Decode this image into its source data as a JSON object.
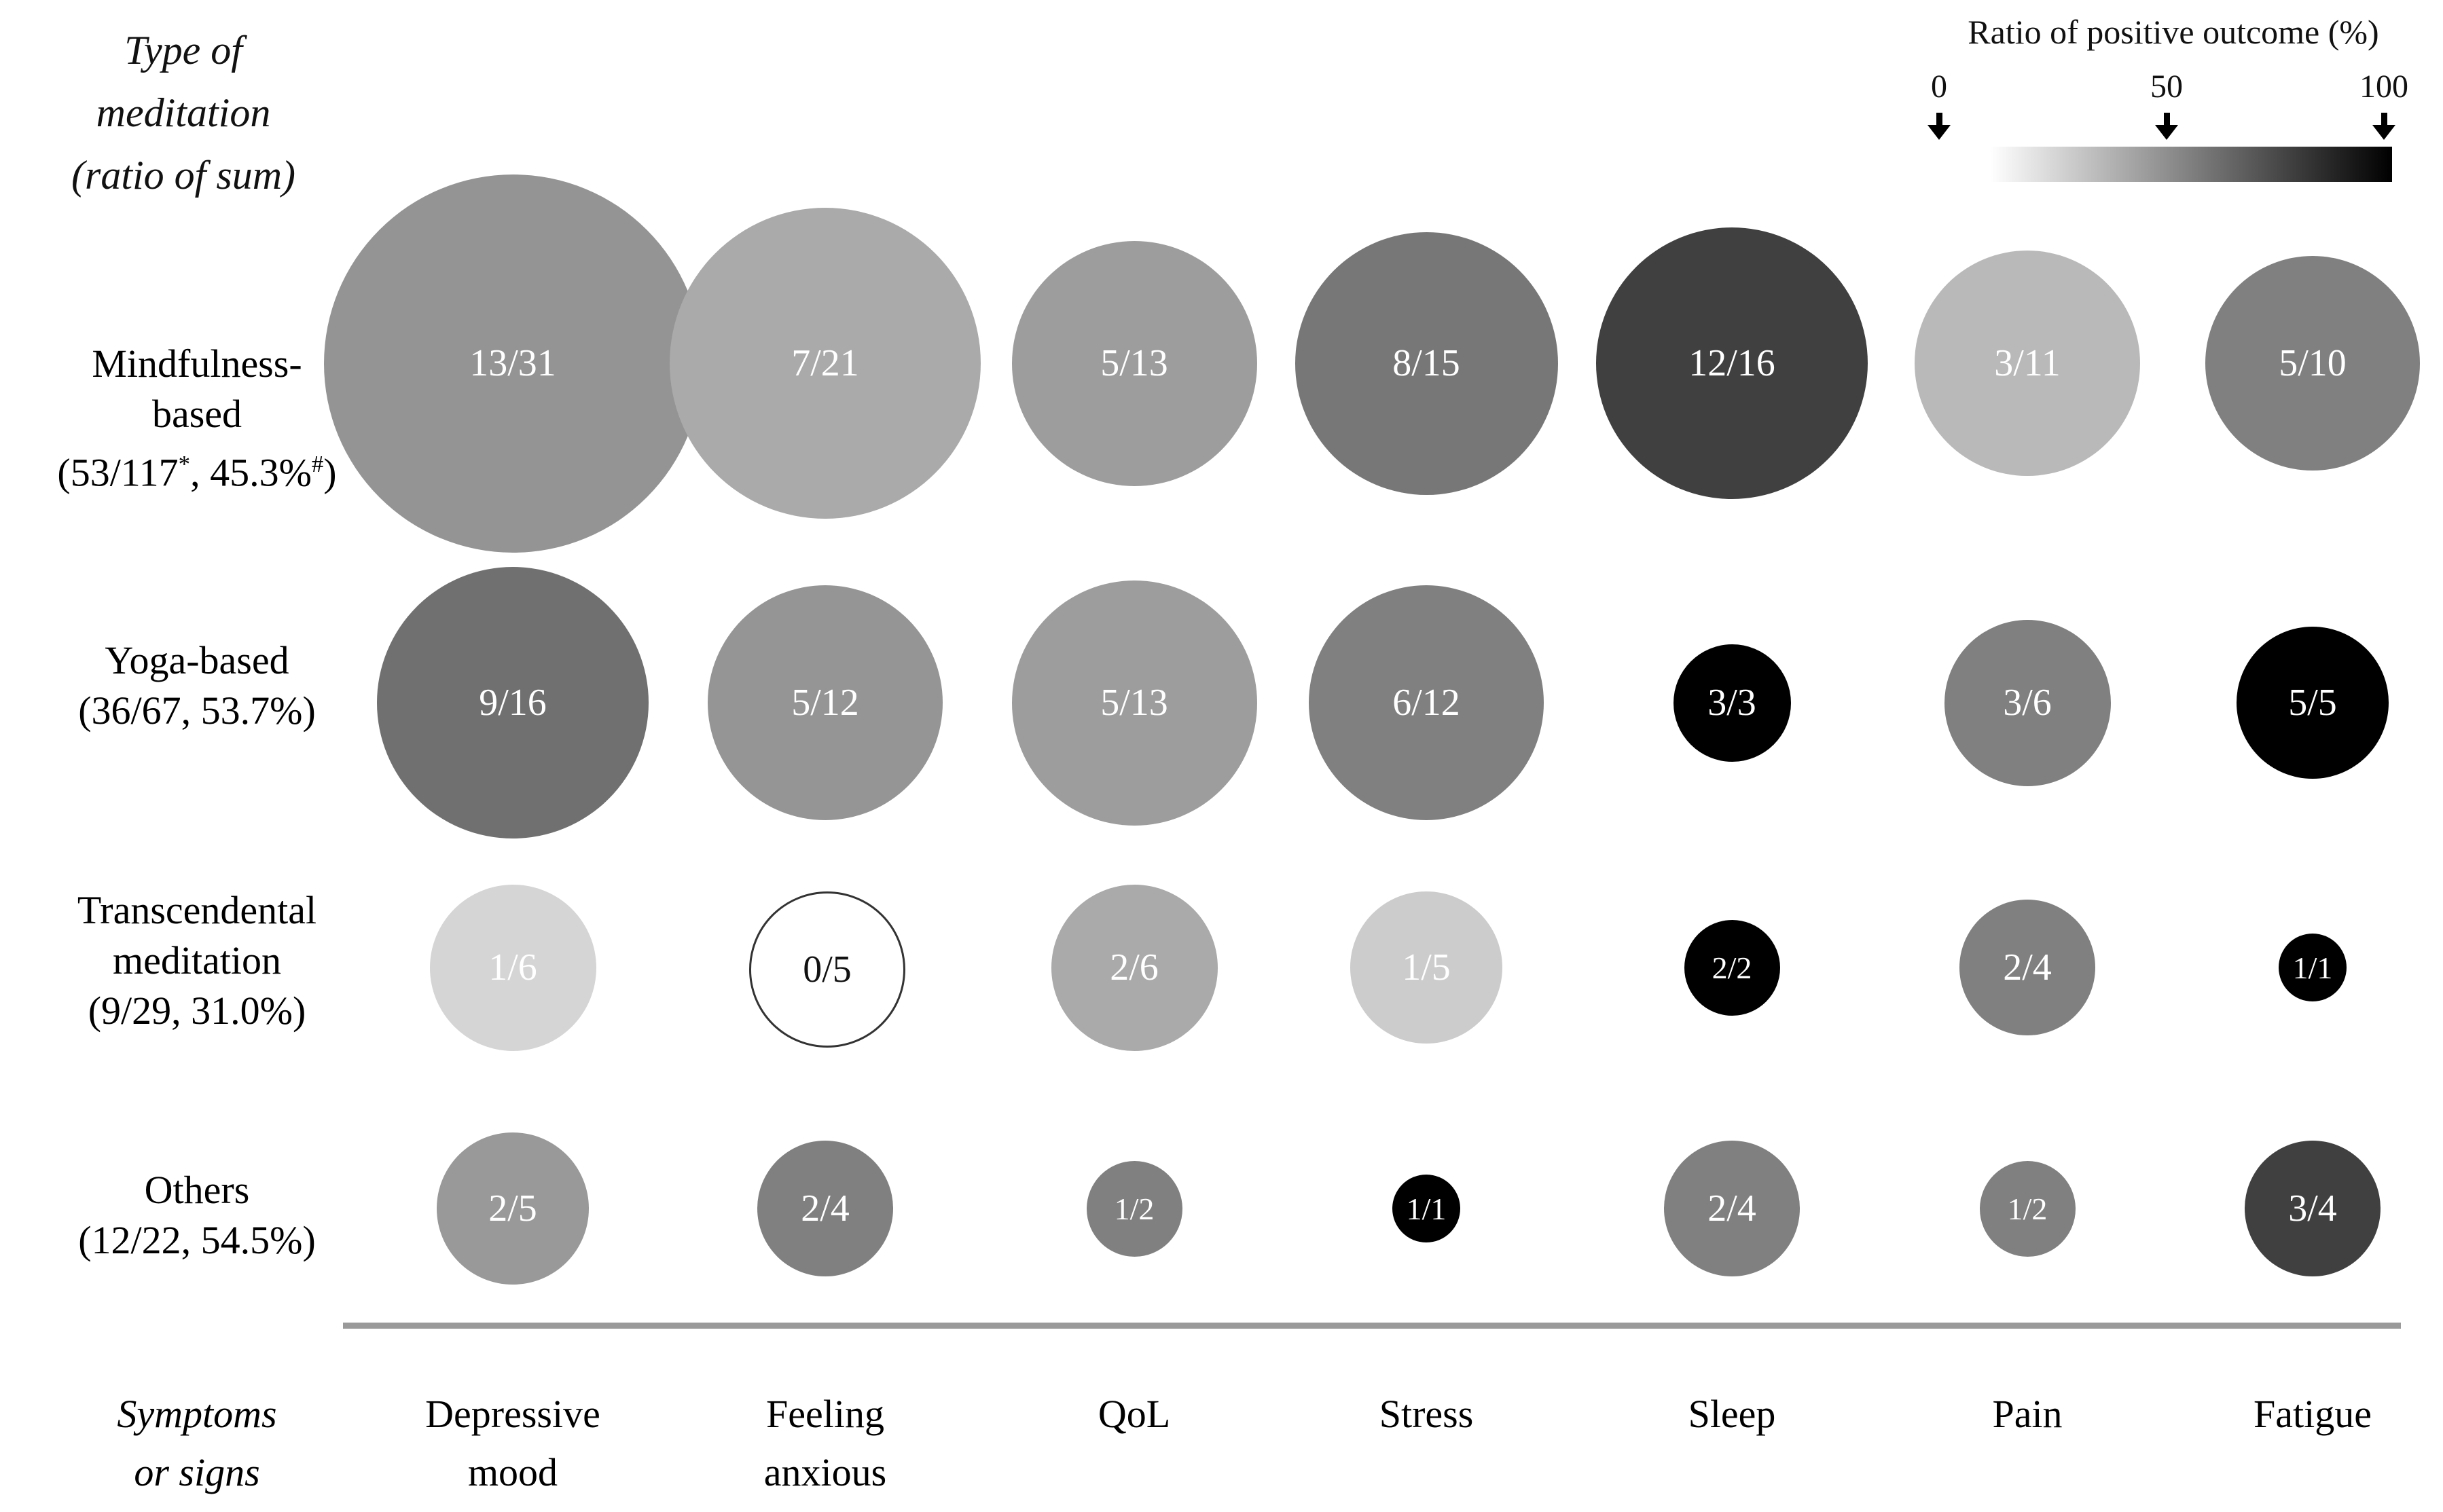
{
  "header": {
    "line1": "Type of",
    "line2": "meditation",
    "line3": "(ratio of sum)"
  },
  "legend": {
    "title": "Ratio of positive outcome (%)",
    "tick_labels": [
      "0",
      "50",
      "100"
    ],
    "gradient_start_color": "#ffffff",
    "gradient_end_color": "#000000"
  },
  "footer": {
    "axis_title_line1": "Symptoms",
    "axis_title_line2": "or signs"
  },
  "chart_data": {
    "type": "scatter",
    "subtype": "bubble-matrix",
    "title": "",
    "legend_title": "Ratio of positive outcome (%)",
    "legend_range": [
      0,
      50,
      100
    ],
    "row_axis_title": "Type of meditation (ratio of sum)",
    "col_axis_title": "Symptoms or signs",
    "size_encoding": "circle area proportional to total number of outcomes (denominator)",
    "color_encoding": "fill darkness proportional to ratio of positive outcome: 0% = white, 100% = black",
    "columns": [
      {
        "label_lines": [
          "Depressive",
          "mood"
        ]
      },
      {
        "label_lines": [
          "Feeling",
          "anxious"
        ]
      },
      {
        "label_lines": [
          "QoL"
        ]
      },
      {
        "label_lines": [
          "Stress"
        ]
      },
      {
        "label_lines": [
          "Sleep"
        ]
      },
      {
        "label_lines": [
          "Pain"
        ]
      },
      {
        "label_lines": [
          "Fatigue"
        ]
      }
    ],
    "rows": [
      {
        "label_lines": [
          "Mindfulness-",
          "based"
        ],
        "sum_text": "(53/117*, 45.3%#)",
        "sum_segments": [
          {
            "t": "(53/117"
          },
          {
            "t": "*",
            "sup": true
          },
          {
            "t": ", 45.3%"
          },
          {
            "t": "#",
            "sup": true
          },
          {
            "t": ")"
          }
        ],
        "cells": [
          {
            "label": "13/31",
            "positive": 13,
            "total": 31
          },
          {
            "label": "7/21",
            "positive": 7,
            "total": 21
          },
          {
            "label": "5/13",
            "positive": 5,
            "total": 13
          },
          {
            "label": "8/15",
            "positive": 8,
            "total": 15
          },
          {
            "label": "12/16",
            "positive": 12,
            "total": 16
          },
          {
            "label": "3/11",
            "positive": 3,
            "total": 11
          },
          {
            "label": "5/10",
            "positive": 5,
            "total": 10
          }
        ]
      },
      {
        "label_lines": [
          "Yoga-based"
        ],
        "sum_text": "(36/67, 53.7%)",
        "sum_segments": [
          {
            "t": "(36/67, 53.7%)"
          }
        ],
        "cells": [
          {
            "label": "9/16",
            "positive": 9,
            "total": 16
          },
          {
            "label": "5/12",
            "positive": 5,
            "total": 12
          },
          {
            "label": "5/13",
            "positive": 5,
            "total": 13
          },
          {
            "label": "6/12",
            "positive": 6,
            "total": 12
          },
          {
            "label": "3/3",
            "positive": 3,
            "total": 3
          },
          {
            "label": "3/6",
            "positive": 3,
            "total": 6
          },
          {
            "label": "5/5",
            "positive": 5,
            "total": 5
          }
        ]
      },
      {
        "label_lines": [
          "Transcendental",
          "meditation"
        ],
        "sum_text": "(9/29, 31.0%)",
        "sum_segments": [
          {
            "t": "(9/29, 31.0%)"
          }
        ],
        "cells": [
          {
            "label": "1/6",
            "positive": 1,
            "total": 6
          },
          {
            "label": "0/5",
            "positive": 0,
            "total": 5
          },
          {
            "label": "2/6",
            "positive": 2,
            "total": 6
          },
          {
            "label": "1/5",
            "positive": 1,
            "total": 5
          },
          {
            "label": "2/2",
            "positive": 2,
            "total": 2
          },
          {
            "label": "2/4",
            "positive": 2,
            "total": 4
          },
          {
            "label": "1/1",
            "positive": 1,
            "total": 1
          }
        ]
      },
      {
        "label_lines": [
          "Others"
        ],
        "sum_text": "(12/22, 54.5%)",
        "sum_segments": [
          {
            "t": "(12/22, 54.5%)"
          }
        ],
        "cells": [
          {
            "label": "2/5",
            "positive": 2,
            "total": 5
          },
          {
            "label": "2/4",
            "positive": 2,
            "total": 4
          },
          {
            "label": "1/2",
            "positive": 1,
            "total": 2
          },
          {
            "label": "1/1",
            "positive": 1,
            "total": 1
          },
          {
            "label": "2/4",
            "positive": 2,
            "total": 4
          },
          {
            "label": "1/2",
            "positive": 1,
            "total": 2
          },
          {
            "label": "3/4",
            "positive": 3,
            "total": 4
          }
        ]
      }
    ]
  }
}
